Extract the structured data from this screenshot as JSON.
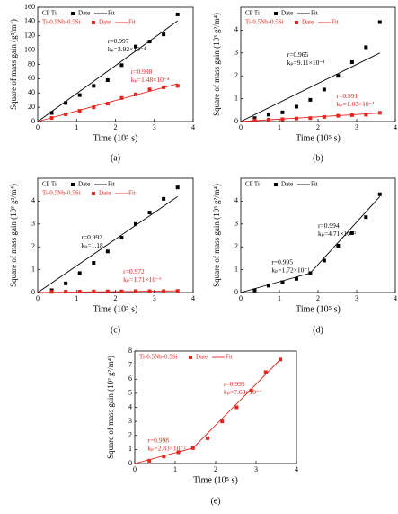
{
  "chart_data": [
    {
      "type": "scatter",
      "caption": "(a)",
      "x_label": "Time (10⁵ s)",
      "y_label": "Square of mass gain (g²/m⁴)",
      "xlim": [
        0,
        4
      ],
      "xticks": [
        0,
        1,
        2,
        3,
        4
      ],
      "ylim": [
        0,
        160
      ],
      "yticks": [
        0,
        20,
        40,
        60,
        80,
        100,
        120,
        140,
        160
      ],
      "legend_marker_label": "Date",
      "legend_line_label": "Fit",
      "series": [
        {
          "name": "CP Ti",
          "color": "#000000",
          "x": [
            0.36,
            0.72,
            1.08,
            1.44,
            1.8,
            2.16,
            2.52,
            2.88,
            3.24,
            3.6
          ],
          "values": [
            12,
            26,
            37,
            50,
            58,
            79,
            105,
            112,
            122,
            150
          ],
          "fit_x": [
            0,
            3.6
          ],
          "fit_values": [
            0,
            141
          ]
        },
        {
          "name": "Ti-0.5Nb-0.5Si",
          "color": "#e8231c",
          "x": [
            0.36,
            0.72,
            1.08,
            1.44,
            1.8,
            2.16,
            2.52,
            2.88,
            3.24,
            3.6
          ],
          "values": [
            5,
            10,
            15,
            20,
            25,
            33,
            38,
            45,
            48,
            50
          ],
          "fit_x": [
            0,
            3.6
          ],
          "fit_values": [
            0,
            53
          ]
        }
      ],
      "annotations": [
        {
          "r": "r=0.997",
          "k": "kₚ=3.92×10⁻⁴",
          "color": "#000000"
        },
        {
          "r": "r=0.998",
          "k": "kₚ=1.48×10⁻⁴",
          "color": "#e8231c"
        }
      ]
    },
    {
      "type": "scatter",
      "caption": "(b)",
      "x_label": "Time (10⁵ s)",
      "y_label": "Square of mass gain (10³ g²/m⁴)",
      "xlim": [
        0,
        4
      ],
      "xticks": [
        0,
        1,
        2,
        3,
        4
      ],
      "ylim": [
        0,
        5
      ],
      "yticks": [
        0,
        1,
        2,
        3,
        4
      ],
      "legend_marker_label": "Date",
      "legend_line_label": "Fit",
      "series": [
        {
          "name": "CP Ti",
          "color": "#000000",
          "x": [
            0.36,
            0.72,
            1.08,
            1.44,
            1.8,
            2.16,
            2.52,
            2.88,
            3.24,
            3.6
          ],
          "values": [
            0.15,
            0.3,
            0.4,
            0.65,
            0.95,
            1.4,
            2.0,
            2.6,
            3.25,
            4.35
          ],
          "fit_x": [
            0,
            3.6
          ],
          "fit_values": [
            0,
            3.0
          ]
        },
        {
          "name": "Ti-0.5Nb-0.5Si",
          "color": "#e8231c",
          "x": [
            0.36,
            0.72,
            1.08,
            1.44,
            1.8,
            2.16,
            2.52,
            2.88,
            3.24,
            3.6
          ],
          "values": [
            0.05,
            0.08,
            0.1,
            0.13,
            0.15,
            0.2,
            0.25,
            0.28,
            0.3,
            0.38
          ],
          "fit_x": [
            0,
            3.6
          ],
          "fit_values": [
            0,
            0.37
          ]
        }
      ],
      "annotations": [
        {
          "r": "r=0.965",
          "k": "kₚ=9.11×10⁻¹",
          "color": "#000000"
        },
        {
          "r": "r=0.991",
          "k": "kₚ=1.03×10⁻¹",
          "color": "#e8231c"
        }
      ]
    },
    {
      "type": "scatter",
      "caption": "(c)",
      "x_label": "Time (10⁵ s)",
      "y_label": "Square of mass gain (10³ g²/m⁴)",
      "xlim": [
        0,
        4
      ],
      "xticks": [
        0,
        1,
        2,
        3,
        4
      ],
      "ylim": [
        0,
        5
      ],
      "yticks": [
        0,
        1,
        2,
        3,
        4
      ],
      "legend_marker_label": "Date",
      "legend_line_label": "Fit",
      "series": [
        {
          "name": "CP Ti",
          "color": "#000000",
          "x": [
            0.36,
            0.72,
            1.08,
            1.44,
            1.8,
            2.16,
            2.52,
            2.88,
            3.24,
            3.6
          ],
          "values": [
            0.1,
            0.4,
            0.85,
            1.3,
            1.8,
            2.4,
            3.0,
            3.5,
            4.1,
            4.6
          ],
          "fit_x": [
            0,
            3.6
          ],
          "fit_values": [
            0,
            4.2
          ]
        },
        {
          "name": "Ti-0.5Nb-0.5Si",
          "color": "#e8231c",
          "x": [
            0.36,
            0.72,
            1.08,
            1.44,
            1.8,
            2.16,
            2.52,
            2.88,
            3.24,
            3.6
          ],
          "values": [
            0.03,
            0.04,
            0.04,
            0.05,
            0.05,
            0.05,
            0.06,
            0.06,
            0.06,
            0.07
          ],
          "fit_x": [
            0,
            3.6
          ],
          "fit_values": [
            0,
            0.07
          ]
        }
      ],
      "annotations": [
        {
          "r": "r=0.992",
          "k": "kₚ=1.18",
          "color": "#000000"
        },
        {
          "r": "r=0.972",
          "k": "kₚ=1.71×10⁻²",
          "color": "#e8231c"
        }
      ]
    },
    {
      "type": "scatter",
      "caption": "(d)",
      "x_label": "Time (10⁵ s)",
      "y_label": "Square of mass gain (10³ g²/m⁴)",
      "xlim": [
        0,
        4
      ],
      "xticks": [
        0,
        1,
        2,
        3,
        4
      ],
      "ylim": [
        0,
        5
      ],
      "yticks": [
        0,
        1,
        2,
        3,
        4
      ],
      "legend_marker_label": "Date",
      "legend_line_label": "Fit",
      "series": [
        {
          "name": "CP Ti",
          "color": "#000000",
          "x": [
            0.36,
            0.72,
            1.08,
            1.44,
            1.8,
            2.16,
            2.52,
            2.88,
            3.24,
            3.6
          ],
          "values": [
            0.1,
            0.3,
            0.45,
            0.6,
            0.85,
            1.4,
            2.05,
            2.6,
            3.3,
            4.3
          ],
          "fit_x": [
            0,
            1.8,
            3.6
          ],
          "fit_values": [
            0,
            0.85,
            4.2
          ]
        }
      ],
      "annotations": [
        {
          "r": "r=0.994",
          "k": "kₚ=4.71×10⁻¹",
          "color": "#000000"
        },
        {
          "r": "r=0.995",
          "k": "kₚ=1.72×10⁻¹",
          "color": "#000000"
        }
      ]
    },
    {
      "type": "scatter",
      "caption": "(e)",
      "x_label": "Time (10⁵ s)",
      "y_label": "Square of mass gain (10² g²/m⁴)",
      "xlim": [
        0,
        4
      ],
      "xticks": [
        0,
        1,
        2,
        3,
        4
      ],
      "ylim": [
        0,
        8
      ],
      "yticks": [
        0,
        1,
        2,
        3,
        4,
        5,
        6,
        7,
        8
      ],
      "legend_marker_label": "Date",
      "legend_line_label": "Fit",
      "series": [
        {
          "name": "Ti-0.5Nb-0.5Si",
          "color": "#e8231c",
          "x": [
            0.36,
            0.72,
            1.08,
            1.44,
            1.8,
            2.16,
            2.52,
            2.88,
            3.24,
            3.6
          ],
          "values": [
            0.2,
            0.5,
            0.8,
            1.1,
            1.8,
            3.0,
            4.0,
            5.2,
            6.5,
            7.4
          ],
          "fit_x": [
            0,
            1.44,
            3.6
          ],
          "fit_values": [
            0,
            1.1,
            7.4
          ]
        }
      ],
      "annotations": [
        {
          "r": "r=0.995",
          "k": "kₚ=7.63×10⁻³",
          "color": "#e8231c"
        },
        {
          "r": "r=0.998",
          "k": "kₚ=2.83×10⁻²",
          "color": "#e8231c"
        }
      ]
    }
  ]
}
